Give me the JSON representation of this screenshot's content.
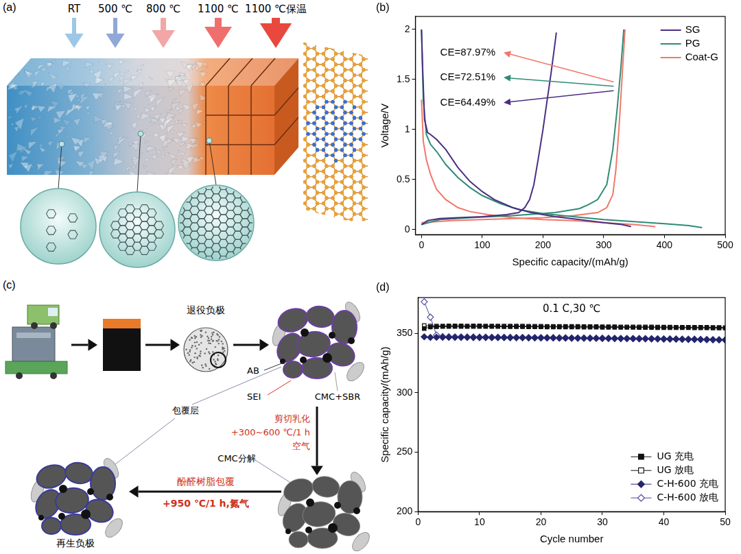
{
  "panel_labels": {
    "a": "(a)",
    "b": "(b)",
    "c": "(c)",
    "d": "(d)"
  },
  "diagram_a": {
    "temperatures": [
      "RT",
      "500 ℃",
      "800 ℃",
      "1100 ℃",
      "1100 ℃保温"
    ]
  },
  "diagram_c": {
    "retired_anode": "退役负极",
    "components": {
      "ab": "AB",
      "sei": "SEI",
      "binder": "CMC+SBR",
      "coating": "包覆层"
    },
    "step1": [
      "剪切乳化",
      "+300~600 ℃/1 h",
      "空气"
    ],
    "step1_result": "CMC分解",
    "step2": [
      "酚醛树脂包覆",
      "+950 ℃/1 h,氮气"
    ],
    "regenerated_anode": "再生负极"
  },
  "chart_data": [
    {
      "type": "line",
      "x_label": "Specific capacity/(mAh/g)",
      "y_label": "Voltage/V",
      "xlim": [
        -10,
        500
      ],
      "xticks": [
        0,
        100,
        200,
        300,
        400,
        500
      ],
      "ylim": [
        -0.05,
        2.13
      ],
      "yticks": [
        0,
        0.5,
        1,
        1.5,
        2
      ],
      "grid": false,
      "legend": "upper right",
      "series": [
        {
          "name": "SG",
          "color": "#4b2e83",
          "x": [
            0,
            2,
            5,
            10,
            15,
            25,
            40,
            60,
            80,
            100,
            120,
            150,
            180,
            220,
            260,
            300,
            330,
            345,
            null,
            0,
            10,
            30,
            60,
            100,
            140,
            160,
            170,
            178,
            185,
            192,
            200,
            207,
            213,
            218,
            222
          ],
          "values": [
            2.0,
            1.6,
            1.1,
            0.97,
            0.95,
            0.9,
            0.8,
            0.62,
            0.48,
            0.38,
            0.3,
            0.22,
            0.17,
            0.13,
            0.1,
            0.07,
            0.05,
            0.03,
            null,
            0.05,
            0.09,
            0.11,
            0.12,
            0.13,
            0.15,
            0.17,
            0.22,
            0.3,
            0.45,
            0.7,
            1.0,
            1.3,
            1.55,
            1.78,
            1.97
          ]
        },
        {
          "name": "PG",
          "color": "#2e8b75",
          "x": [
            0,
            3,
            8,
            15,
            25,
            40,
            60,
            80,
            100,
            130,
            160,
            200,
            250,
            300,
            350,
            400,
            440,
            462,
            null,
            0,
            30,
            80,
            150,
            220,
            260,
            275,
            290,
            305,
            315,
            322,
            328,
            333
          ],
          "values": [
            2.0,
            1.3,
            0.95,
            0.85,
            0.78,
            0.65,
            0.52,
            0.42,
            0.34,
            0.26,
            0.2,
            0.16,
            0.13,
            0.1,
            0.08,
            0.06,
            0.04,
            0.02,
            null,
            0.05,
            0.1,
            0.12,
            0.14,
            0.17,
            0.21,
            0.25,
            0.3,
            0.45,
            0.8,
            1.2,
            1.6,
            2.0
          ]
        },
        {
          "name": "Coat-G",
          "color": "#f0786a",
          "x": [
            0,
            3,
            8,
            15,
            25,
            40,
            60,
            80,
            110,
            150,
            200,
            250,
            300,
            350,
            385,
            null,
            0,
            50,
            100,
            150,
            200,
            250,
            290,
            305,
            315,
            320,
            325,
            330,
            335
          ],
          "values": [
            1.3,
            0.88,
            0.7,
            0.55,
            0.4,
            0.3,
            0.22,
            0.18,
            0.15,
            0.12,
            0.1,
            0.09,
            0.07,
            0.05,
            0.03,
            null,
            0.07,
            0.09,
            0.1,
            0.11,
            0.12,
            0.14,
            0.17,
            0.22,
            0.35,
            0.6,
            1.0,
            1.5,
            2.0
          ]
        }
      ],
      "annotations": [
        {
          "text": "CE=87.97%",
          "color": "#f0786a"
        },
        {
          "text": "CE=72.51%",
          "color": "#2e8b75"
        },
        {
          "text": "CE=64.49%",
          "color": "#4b2e83"
        }
      ]
    },
    {
      "type": "line",
      "title": "0.1 C,30 ℃",
      "x_label": "Cycle number",
      "y_label": "Specific capacity/(mAh/g)",
      "x": [
        1,
        2,
        3,
        4,
        5,
        6,
        7,
        8,
        9,
        10,
        11,
        12,
        13,
        14,
        15,
        16,
        17,
        18,
        19,
        20,
        21,
        22,
        23,
        24,
        25,
        26,
        27,
        28,
        29,
        30,
        31,
        32,
        33,
        34,
        35,
        36,
        37,
        38,
        39,
        40,
        41,
        42,
        43,
        44,
        45,
        46,
        47,
        48,
        49,
        50
      ],
      "xlim": [
        0,
        50
      ],
      "xticks": [
        0,
        10,
        20,
        30,
        40,
        50
      ],
      "ylim": [
        200,
        380
      ],
      "yticks": [
        200,
        250,
        300,
        350
      ],
      "grid": false,
      "legend": "lower right",
      "series": [
        {
          "name": "UG 充电",
          "color": "#111111",
          "marker": "square",
          "values": [
            354.0,
            355.2,
            355.5,
            355.6,
            355.6,
            355.7,
            355.7,
            355.6,
            355.7,
            355.7,
            355.6,
            355.6,
            355.6,
            355.5,
            355.5,
            355.5,
            355.5,
            355.4,
            355.4,
            355.4,
            355.3,
            355.3,
            355.3,
            355.2,
            355.2,
            355.2,
            355.1,
            355.1,
            355.1,
            355.0,
            355.0,
            355.0,
            354.9,
            354.9,
            354.9,
            354.8,
            354.8,
            354.8,
            354.7,
            354.7,
            354.7,
            354.6,
            354.6,
            354.6,
            354.5,
            354.5,
            354.5,
            354.4,
            354.4,
            354.3
          ]
        },
        {
          "name": "UG 放电",
          "color": "#111111",
          "marker": "open_square",
          "values": [
            356.5,
            356.0,
            356.1,
            356.1,
            356.2,
            356.2,
            356.2,
            356.1,
            356.2,
            356.2,
            356.1,
            356.1,
            356.1,
            356.0,
            356.0,
            356.0,
            356.0,
            355.9,
            355.9,
            355.9,
            355.8,
            355.8,
            355.8,
            355.7,
            355.7,
            355.7,
            355.6,
            355.6,
            355.6,
            355.5,
            355.5,
            355.5,
            355.4,
            355.4,
            355.4,
            355.3,
            355.3,
            355.3,
            355.2,
            355.2,
            355.2,
            355.1,
            355.1,
            355.1,
            355.0,
            355.0,
            355.0,
            354.9,
            354.9,
            354.8
          ]
        },
        {
          "name": "C-H-600 充电",
          "color": "#23256b",
          "marker": "diamond",
          "values": [
            347.0,
            346.5,
            346.6,
            346.6,
            346.6,
            346.5,
            346.5,
            346.5,
            346.4,
            346.4,
            346.4,
            346.3,
            346.3,
            346.3,
            346.2,
            346.2,
            346.2,
            346.1,
            346.1,
            346.0,
            346.0,
            346.0,
            345.9,
            345.9,
            345.8,
            345.8,
            345.8,
            345.7,
            345.7,
            345.6,
            345.6,
            345.5,
            345.5,
            345.4,
            345.4,
            345.3,
            345.3,
            345.2,
            345.2,
            345.1,
            345.0,
            345.0,
            344.9,
            344.8,
            344.8,
            344.7,
            344.6,
            344.5,
            344.4,
            344.3
          ]
        },
        {
          "name": "C-H-600 放电",
          "color": "#4a4a9c",
          "marker": "open_diamond",
          "values": [
            376.5,
            363.5,
            348.5,
            347.2,
            347.1,
            347.0,
            347.0,
            346.9,
            346.9,
            346.8,
            346.8,
            346.7,
            346.7,
            346.6,
            346.6,
            346.5,
            346.5,
            346.4,
            346.4,
            346.4,
            346.3,
            346.3,
            346.2,
            346.2,
            346.1,
            346.1,
            346.0,
            346.0,
            345.9,
            345.9,
            345.8,
            345.8,
            345.7,
            345.7,
            345.6,
            345.6,
            345.5,
            345.5,
            345.4,
            345.3,
            345.3,
            345.2,
            345.1,
            345.1,
            345.0,
            344.9,
            344.8,
            344.7,
            344.6,
            344.5
          ]
        }
      ]
    }
  ]
}
